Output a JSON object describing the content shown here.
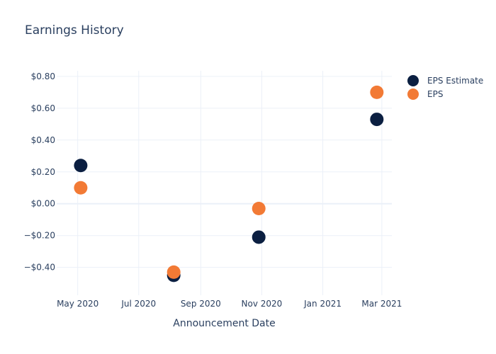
{
  "chart_data": {
    "type": "scatter",
    "title": "Earnings History",
    "xlabel": "Announcement Date",
    "ylabel": "",
    "x_type": "date",
    "x_tick_values": [
      "2020-05-01",
      "2020-07-01",
      "2020-09-01",
      "2020-11-01",
      "2021-01-01",
      "2021-03-01"
    ],
    "x_tick_labels": [
      "May 2020",
      "Jul 2020",
      "Sep 2020",
      "Nov 2020",
      "Jan 2021",
      "Mar 2021"
    ],
    "xlim": [
      "2020-04-10",
      "2021-03-11"
    ],
    "y_tick_values": [
      -0.4,
      -0.2,
      0,
      0.2,
      0.4,
      0.6,
      0.8
    ],
    "y_tick_labels": [
      "−$0.40",
      "−$0.20",
      "$0.00",
      "$0.20",
      "$0.40",
      "$0.60",
      "$0.80"
    ],
    "ylim": [
      -0.575,
      0.835
    ],
    "grid": true,
    "legend_position": "top-right",
    "series": [
      {
        "name": "EPS Estimate",
        "color": "#0b1f41",
        "points": [
          {
            "x": "2020-05-04",
            "y": 0.24
          },
          {
            "x": "2020-08-05",
            "y": -0.45
          },
          {
            "x": "2020-10-29",
            "y": -0.21
          },
          {
            "x": "2021-02-24",
            "y": 0.53
          }
        ]
      },
      {
        "name": "EPS",
        "color": "#f27a35",
        "points": [
          {
            "x": "2020-05-04",
            "y": 0.1
          },
          {
            "x": "2020-08-05",
            "y": -0.43
          },
          {
            "x": "2020-10-29",
            "y": -0.03
          },
          {
            "x": "2021-02-24",
            "y": 0.7
          }
        ]
      }
    ]
  }
}
